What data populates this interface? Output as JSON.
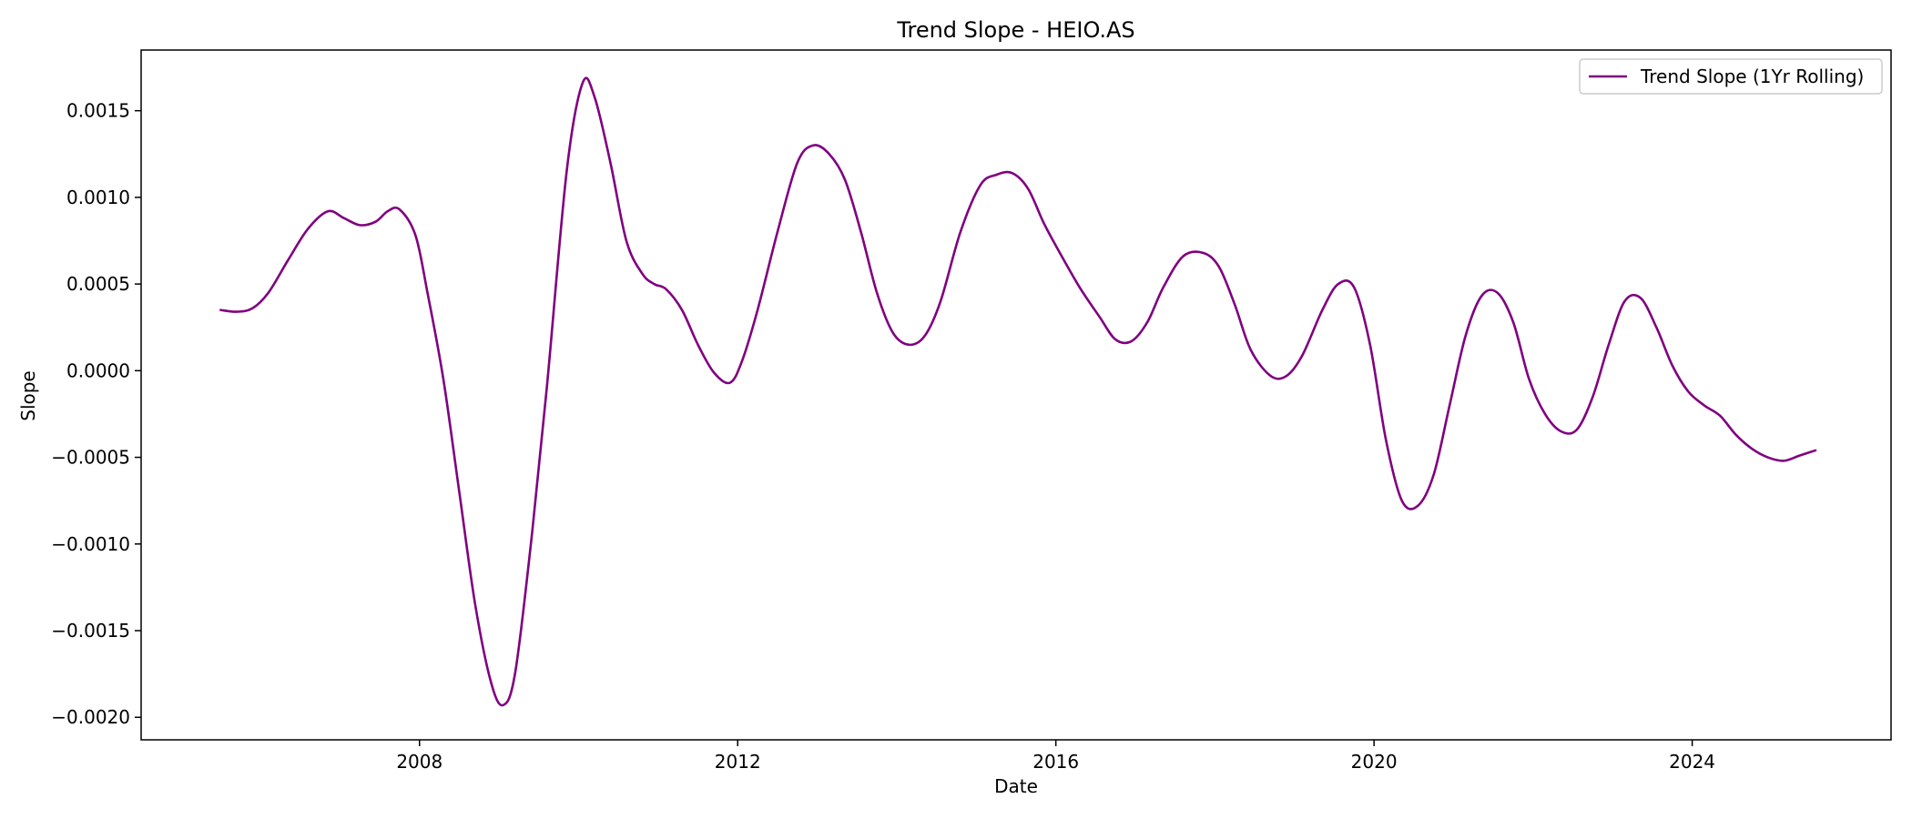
{
  "chart_data": {
    "type": "line",
    "title": "Trend Slope - HEIO.AS",
    "xlabel": "Date",
    "ylabel": "Slope",
    "xlim": [
      2004.5,
      2026.5
    ],
    "ylim": [
      -0.00213,
      0.00185
    ],
    "x_ticks": [
      2008,
      2012,
      2016,
      2020,
      2024
    ],
    "x_tick_labels": [
      "2008",
      "2012",
      "2016",
      "2020",
      "2024"
    ],
    "y_ticks": [
      0.0015,
      0.001,
      0.0005,
      0.0,
      -0.0005,
      -0.001,
      -0.0015,
      -0.002
    ],
    "y_tick_labels": [
      "0.0015",
      "0.0010",
      "0.0005",
      "0.0000",
      "−0.0005",
      "−0.0010",
      "−0.0015",
      "−0.0020"
    ],
    "grid": false,
    "legend_position": "top-right",
    "series": [
      {
        "name": "Trend Slope (1Yr Rolling)",
        "color": "#800080",
        "x": [
          2005.5,
          2005.7,
          2005.9,
          2006.1,
          2006.35,
          2006.6,
          2006.85,
          2007.05,
          2007.25,
          2007.45,
          2007.6,
          2007.75,
          2007.95,
          2008.1,
          2008.3,
          2008.5,
          2008.7,
          2008.9,
          2009.05,
          2009.2,
          2009.4,
          2009.6,
          2009.85,
          2010.05,
          2010.2,
          2010.4,
          2010.6,
          2010.8,
          2010.95,
          2011.1,
          2011.3,
          2011.5,
          2011.7,
          2011.9,
          2012.05,
          2012.25,
          2012.5,
          2012.75,
          2012.95,
          2013.15,
          2013.35,
          2013.55,
          2013.75,
          2013.95,
          2014.15,
          2014.35,
          2014.55,
          2014.8,
          2015.05,
          2015.25,
          2015.45,
          2015.65,
          2015.85,
          2016.05,
          2016.3,
          2016.55,
          2016.75,
          2016.95,
          2017.15,
          2017.35,
          2017.6,
          2017.85,
          2018.05,
          2018.25,
          2018.45,
          2018.7,
          2018.9,
          2019.1,
          2019.35,
          2019.55,
          2019.75,
          2019.95,
          2020.15,
          2020.35,
          2020.55,
          2020.75,
          2020.95,
          2021.15,
          2021.35,
          2021.55,
          2021.75,
          2021.95,
          2022.15,
          2022.35,
          2022.55,
          2022.75,
          2022.95,
          2023.15,
          2023.35,
          2023.55,
          2023.75,
          2023.95,
          2024.15,
          2024.35,
          2024.55,
          2024.75,
          2024.95,
          2025.15,
          2025.35,
          2025.55
        ],
        "y": [
          0.00035,
          0.00034,
          0.00036,
          0.00045,
          0.00064,
          0.00082,
          0.00092,
          0.00088,
          0.00084,
          0.00086,
          0.00092,
          0.00093,
          0.00078,
          0.00045,
          -5e-05,
          -0.0007,
          -0.00135,
          -0.0018,
          -0.00193,
          -0.00175,
          -0.001,
          -0.0001,
          0.00115,
          0.00166,
          0.00158,
          0.0012,
          0.00075,
          0.00056,
          0.0005,
          0.00047,
          0.00035,
          0.00015,
          -1e-05,
          -7e-05,
          5e-05,
          0.00035,
          0.0008,
          0.0012,
          0.0013,
          0.00125,
          0.0011,
          0.0008,
          0.00045,
          0.00022,
          0.00015,
          0.0002,
          0.0004,
          0.0008,
          0.00107,
          0.00113,
          0.00114,
          0.00105,
          0.00085,
          0.00068,
          0.00048,
          0.00031,
          0.00018,
          0.00017,
          0.00028,
          0.00048,
          0.00066,
          0.00068,
          0.0006,
          0.00038,
          0.00012,
          -3e-05,
          -3e-05,
          9e-05,
          0.00035,
          0.0005,
          0.00048,
          0.00015,
          -0.0004,
          -0.00075,
          -0.00078,
          -0.0006,
          -0.0002,
          0.0002,
          0.00043,
          0.00045,
          0.00028,
          -5e-05,
          -0.00025,
          -0.00035,
          -0.00034,
          -0.00015,
          0.00015,
          0.0004,
          0.00042,
          0.00025,
          3e-05,
          -0.00012,
          -0.0002,
          -0.00026,
          -0.00037,
          -0.00045,
          -0.0005,
          -0.00052,
          -0.00049,
          -0.00046
        ]
      }
    ]
  }
}
